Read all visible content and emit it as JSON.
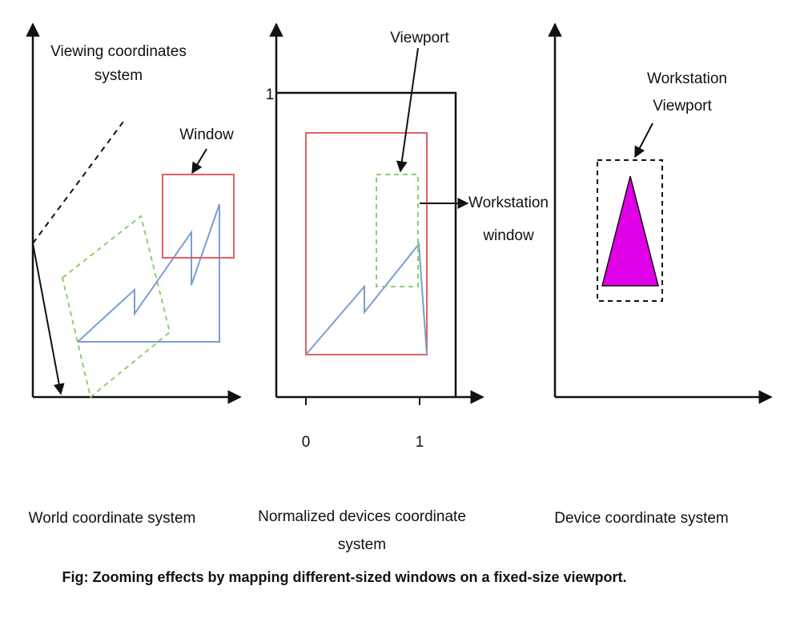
{
  "labels": {
    "viewing_coordinates_line1": "Viewing coordinates",
    "viewing_coordinates_line2": "system",
    "window": "Window",
    "viewport": "Viewport",
    "workstation_window_line1": "Workstation",
    "workstation_window_line2": "window",
    "workstation_viewport_line1": "Workstation",
    "workstation_viewport_line2": "Viewport",
    "ndc_y_tick": "1",
    "ndc_x_tick_0": "0",
    "ndc_x_tick_1": "1"
  },
  "captions": {
    "world": "World coordinate system",
    "ndc_line1": "Normalized devices coordinate",
    "ndc_line2": "system",
    "device": "Device coordinate system"
  },
  "figure_caption": "Fig: Zooming effects by mapping different-sized windows on a fixed-size viewport.",
  "colors": {
    "window_red": "#e06060",
    "shape_blue": "#7a9fd0",
    "viewport_green": "#8fcf6a",
    "triangle_fill": "#e000e8",
    "axis": "#111111"
  }
}
